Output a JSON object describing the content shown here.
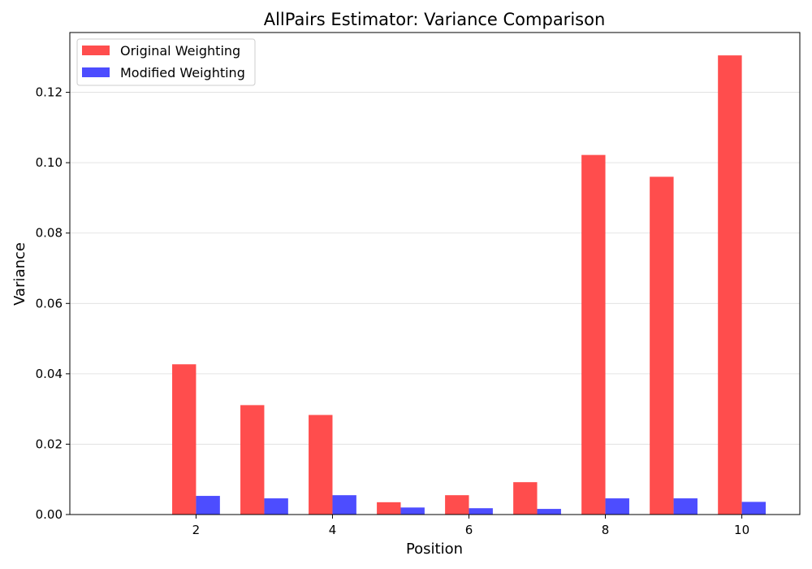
{
  "chart_data": {
    "type": "bar",
    "title": "AllPairs Estimator: Variance Comparison",
    "xlabel": "Position",
    "ylabel": "Variance",
    "x": [
      2,
      3,
      4,
      5,
      6,
      7,
      8,
      9,
      10
    ],
    "xlim": [
      0.15,
      10.85
    ],
    "ylim": [
      0,
      0.137
    ],
    "xticks": [
      2,
      4,
      6,
      8,
      10
    ],
    "xtick_labels": [
      "2",
      "4",
      "6",
      "8",
      "10"
    ],
    "yticks": [
      0.0,
      0.02,
      0.04,
      0.06,
      0.08,
      0.1,
      0.12
    ],
    "ytick_labels": [
      "0.00",
      "0.02",
      "0.04",
      "0.06",
      "0.08",
      "0.10",
      "0.12"
    ],
    "grid": "horizontal",
    "legend_position": "top-left",
    "series": [
      {
        "name": "Original Weighting",
        "color": "#ff4d4d",
        "values": [
          0.0427,
          0.0311,
          0.0283,
          0.0035,
          0.0055,
          0.0092,
          0.1022,
          0.096,
          0.1305
        ]
      },
      {
        "name": "Modified Weighting",
        "color": "#4d4dff",
        "values": [
          0.0053,
          0.0046,
          0.0055,
          0.002,
          0.0018,
          0.0016,
          0.0046,
          0.0046,
          0.0036
        ]
      }
    ]
  }
}
